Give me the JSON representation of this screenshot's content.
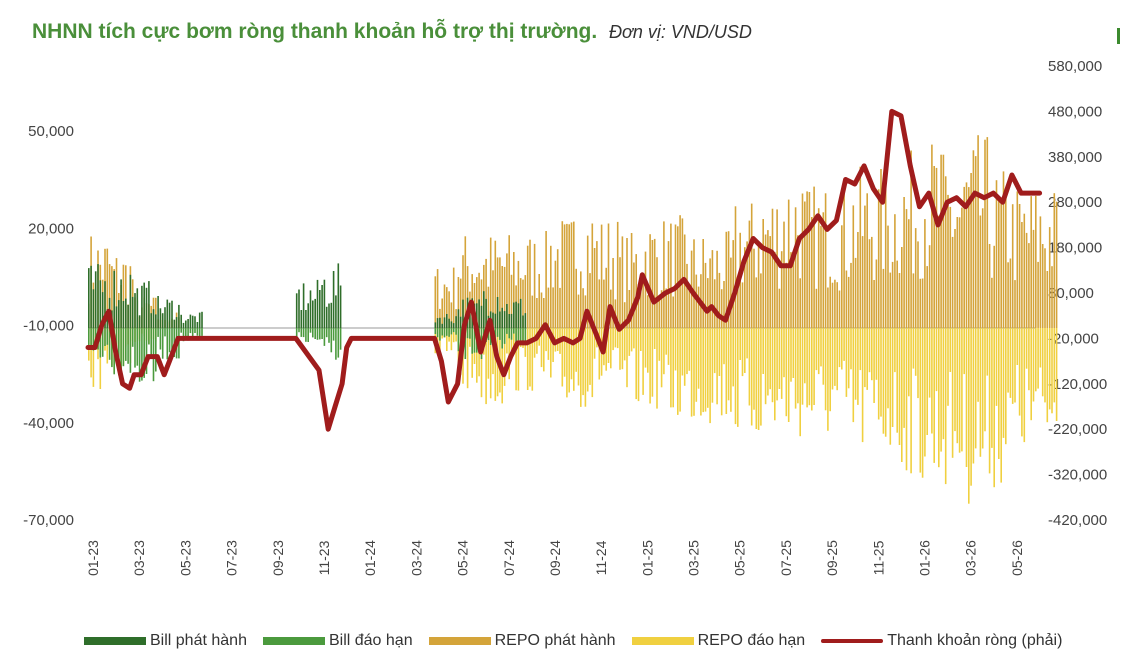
{
  "title": {
    "main": "NHNN tích cực bơm ròng thanh khoản hỗ trợ thị trường.",
    "sub": "Đơn vị: VND/USD"
  },
  "colors": {
    "bill_issue": "#2f6e2a",
    "bill_mature": "#4b9a3d",
    "repo_issue": "#d4a43a",
    "repo_mature": "#f0d040",
    "net_liquidity": "#a01c1c",
    "zero_line": "#cccccc"
  },
  "legend": [
    {
      "key": "bill_issue",
      "label": "Bill phát hành",
      "type": "bar"
    },
    {
      "key": "bill_mature",
      "label": "Bill đáo hạn",
      "type": "bar"
    },
    {
      "key": "repo_issue",
      "label": "REPO phát hành",
      "type": "bar"
    },
    {
      "key": "repo_mature",
      "label": "REPO đáo hạn",
      "type": "bar"
    },
    {
      "key": "net_liquidity",
      "label": "Thanh khoản ròng (phải)",
      "type": "line"
    }
  ],
  "chart_data": {
    "type": "bar",
    "x_ticks": [
      "01-23",
      "03-23",
      "05-23",
      "07-23",
      "09-23",
      "11-23",
      "01-24",
      "03-24",
      "05-24",
      "07-24",
      "09-24",
      "11-24",
      "01-25",
      "03-25",
      "05-25",
      "07-25",
      "09-25",
      "11-25",
      "01-26",
      "03-26",
      "05-26"
    ],
    "y_left_ticks": [
      "50,000",
      "20,000",
      "-10,000",
      "-40,000",
      "-70,000"
    ],
    "y_left_lim": [
      -70000,
      50000
    ],
    "y_right_ticks": [
      "580,000",
      "480,000",
      "380,000",
      "280,000",
      "180,000",
      "80,000",
      "-20,000",
      "-120,000",
      "-220,000",
      "-320,000",
      "-420,000"
    ],
    "y_right_lim": [
      -420000,
      580000
    ],
    "bar_envelope_note_free": true,
    "series": [
      {
        "name": "Bill phát hành",
        "key": "bill_issue",
        "axis": "left",
        "values_by_month": [
          20000,
          20000,
          15000,
          10000,
          5000,
          0,
          0,
          0,
          0,
          15000,
          20000,
          0,
          0,
          0,
          0,
          5000,
          10000,
          15000,
          10000,
          0,
          0,
          0,
          0,
          0,
          0,
          0,
          0,
          0,
          0,
          0,
          0,
          0,
          0,
          0,
          0,
          0,
          0,
          0,
          0,
          0,
          0,
          0,
          0
        ]
      },
      {
        "name": "Bill đáo hạn",
        "key": "bill_mature",
        "axis": "left",
        "values_by_month": [
          -10000,
          -15000,
          -20000,
          -10000,
          -5000,
          0,
          0,
          0,
          0,
          -5000,
          -10000,
          0,
          0,
          0,
          0,
          -5000,
          -10000,
          -10000,
          -5000,
          0,
          0,
          0,
          0,
          0,
          0,
          0,
          0,
          0,
          0,
          0,
          0,
          0,
          0,
          0,
          0,
          0,
          0,
          0,
          0,
          0,
          0,
          0,
          0
        ]
      },
      {
        "name": "REPO phát hành",
        "key": "repo_issue",
        "axis": "left",
        "values_by_month": [
          30000,
          25000,
          10000,
          5000,
          0,
          0,
          0,
          0,
          0,
          0,
          0,
          0,
          0,
          0,
          0,
          20000,
          30000,
          30000,
          30000,
          30000,
          35000,
          40000,
          35000,
          30000,
          35000,
          35000,
          30000,
          30000,
          40000,
          45000,
          50000,
          45000,
          45000,
          50000,
          50000,
          55000,
          60000,
          55000,
          60000,
          50000,
          45000,
          45000
        ]
      },
      {
        "name": "REPO đáo hạn",
        "key": "repo_mature",
        "axis": "left",
        "values_by_month": [
          -20000,
          -15000,
          -5000,
          0,
          0,
          0,
          0,
          0,
          0,
          0,
          0,
          0,
          0,
          0,
          0,
          -10000,
          -20000,
          -25000,
          -20000,
          -20000,
          -25000,
          -25000,
          -20000,
          -25000,
          -25000,
          -30000,
          -30000,
          -30000,
          -35000,
          -35000,
          -35000,
          -35000,
          -35000,
          -40000,
          -40000,
          -45000,
          -50000,
          -50000,
          -55000,
          -50000,
          -40000,
          -40000
        ]
      },
      {
        "name": "Thanh khoản ròng (phải)",
        "key": "net_liquidity",
        "axis": "right",
        "type": "line",
        "x_month_index": [
          0,
          0.3,
          0.6,
          0.9,
          1.2,
          1.5,
          1.8,
          2.0,
          2.3,
          2.6,
          3.0,
          3.3,
          3.6,
          3.9,
          4.2,
          4.5,
          5,
          6,
          7,
          8,
          9,
          10,
          10.4,
          10.7,
          11,
          11.2,
          11.4,
          11.6,
          12,
          12.3,
          13,
          14,
          15,
          15.3,
          15.6,
          16,
          16.3,
          16.6,
          17,
          17.4,
          17.7,
          18,
          18.3,
          18.6,
          19,
          19.4,
          19.8,
          20.2,
          20.6,
          21,
          21.3,
          21.6,
          22,
          22.3,
          22.6,
          23,
          23.4,
          23.8,
          24,
          24.5,
          25,
          25.4,
          25.8,
          26.2,
          26.5,
          26.8,
          27,
          27.3,
          27.6,
          28,
          28.4,
          28.8,
          29.2,
          29.6,
          30,
          30.4,
          30.8,
          31.2,
          31.6,
          32,
          32.4,
          32.8,
          33.2,
          33.6,
          34,
          34.4,
          34.8,
          35.2,
          35.6,
          36,
          36.4,
          36.8,
          37.2,
          37.6,
          38,
          38.4,
          38.8,
          39.2,
          39.6,
          40,
          40.4,
          40.8,
          41.2
        ],
        "values": [
          -40000,
          -40000,
          10000,
          40000,
          -50000,
          -120000,
          -130000,
          -100000,
          -100000,
          -60000,
          -60000,
          -100000,
          -60000,
          -20000,
          -20000,
          -20000,
          -20000,
          -20000,
          -20000,
          -20000,
          -20000,
          -90000,
          -220000,
          -170000,
          -120000,
          -40000,
          -20000,
          -20000,
          -20000,
          -20000,
          -20000,
          -20000,
          -20000,
          -70000,
          -160000,
          -120000,
          10000,
          60000,
          -50000,
          20000,
          -60000,
          -100000,
          -60000,
          -30000,
          -30000,
          -20000,
          10000,
          -30000,
          -20000,
          -30000,
          -20000,
          40000,
          -10000,
          -50000,
          50000,
          0,
          20000,
          70000,
          120000,
          60000,
          80000,
          90000,
          110000,
          80000,
          60000,
          40000,
          50000,
          30000,
          20000,
          80000,
          150000,
          200000,
          180000,
          170000,
          140000,
          140000,
          200000,
          220000,
          250000,
          220000,
          240000,
          330000,
          320000,
          360000,
          310000,
          280000,
          480000,
          470000,
          360000,
          270000,
          300000,
          230000,
          280000,
          290000,
          270000,
          300000,
          290000,
          300000,
          280000,
          340000,
          300000,
          300000,
          300000
        ]
      }
    ]
  }
}
